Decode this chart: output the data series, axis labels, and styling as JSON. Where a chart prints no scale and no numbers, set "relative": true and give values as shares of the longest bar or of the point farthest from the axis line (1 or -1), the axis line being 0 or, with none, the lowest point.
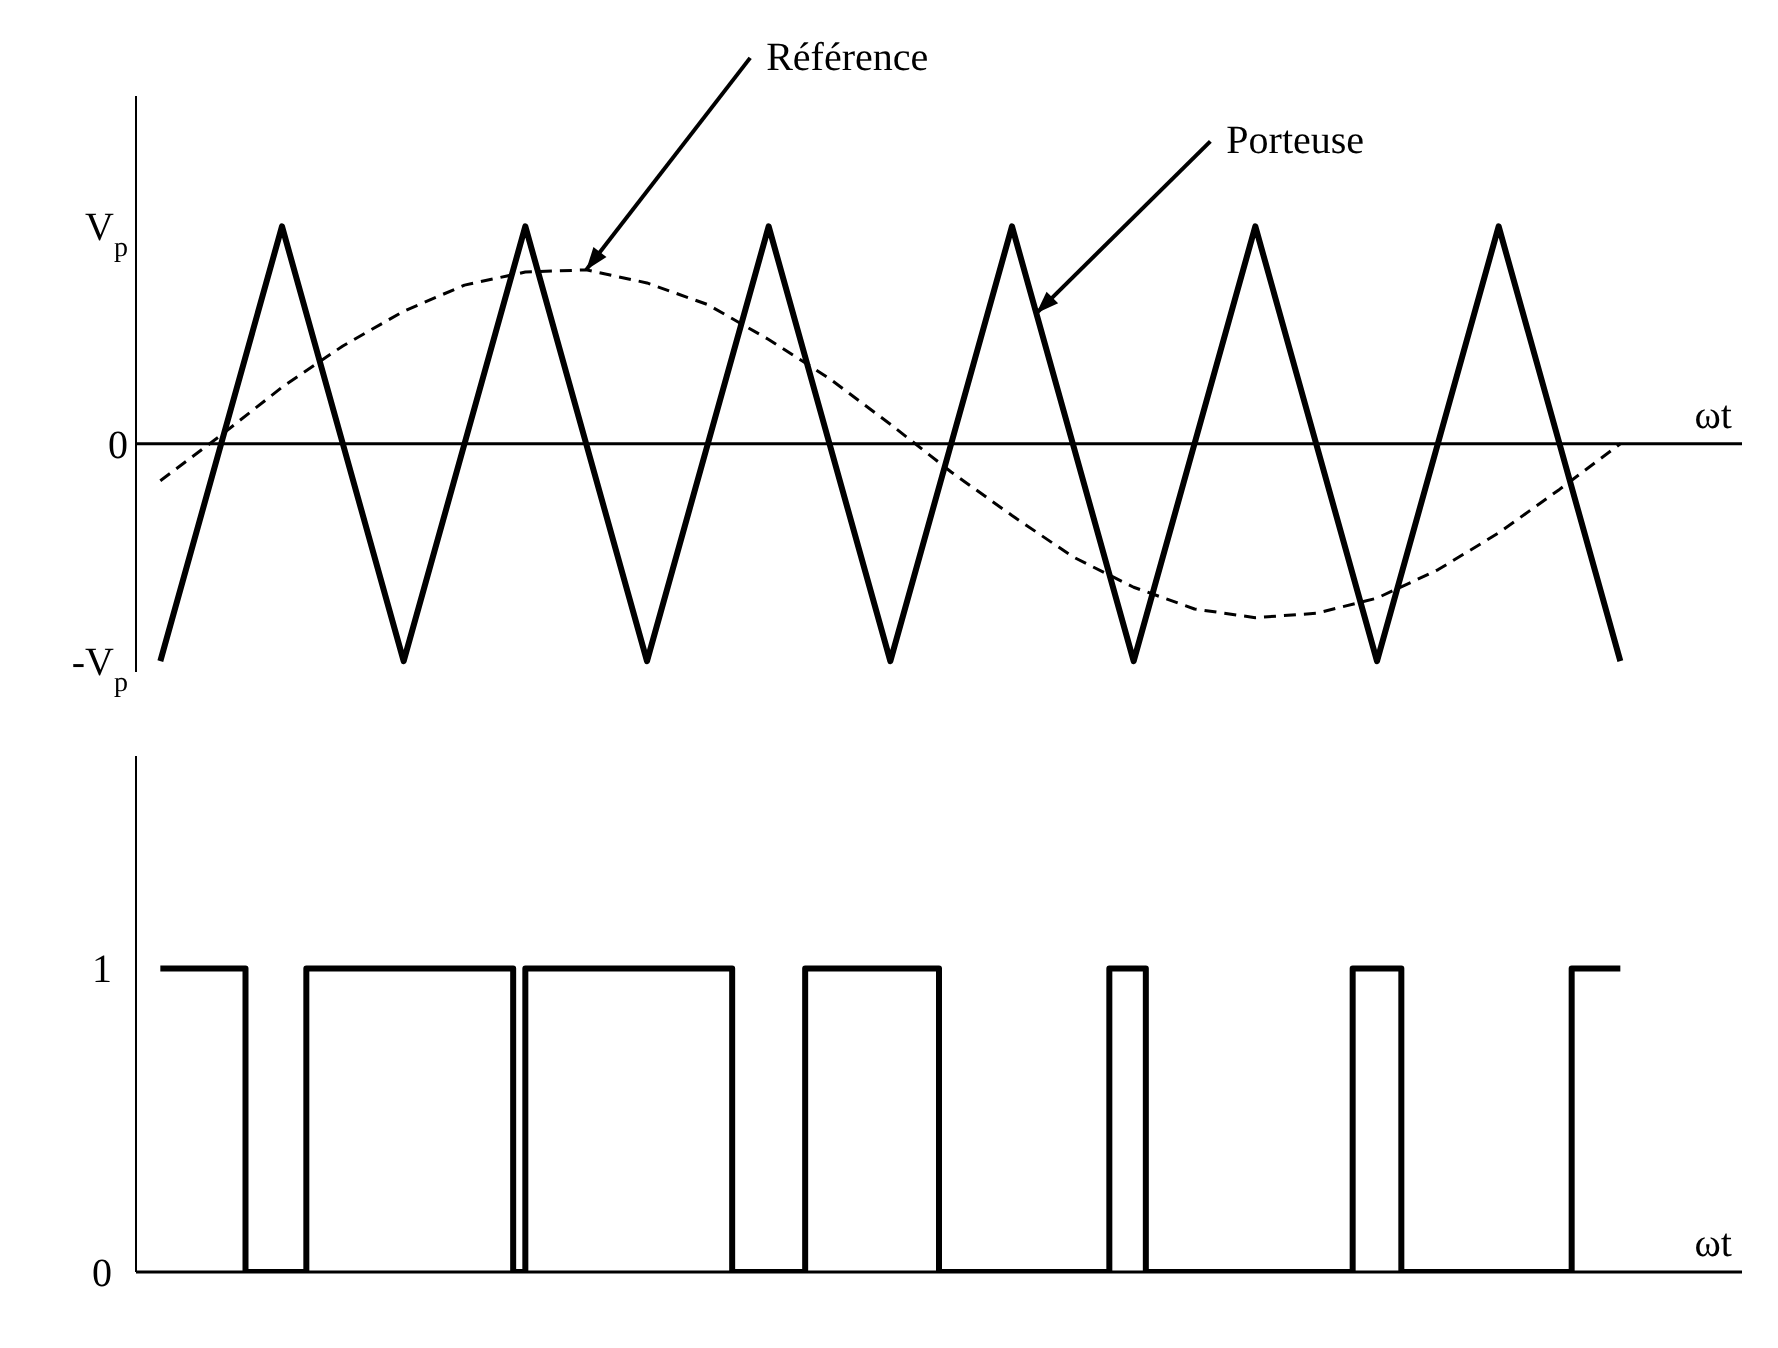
{
  "chart_data": [
    {
      "type": "line",
      "xlabel": "ωt",
      "relative": true,
      "tick_labels": "y",
      "annotations": [
        "V$_{p}$",
        "0",
        "-V$_{p}$"
      ],
      "categories": [
        null,
        null,
        null,
        null,
        null,
        null,
        null,
        null,
        null,
        null,
        null,
        null,
        null,
        null,
        null,
        null,
        null,
        null,
        null,
        null,
        null,
        null,
        null,
        null,
        null
      ],
      "series": [
        {
          "name": "Porteuse",
          "color": "#000000",
          "values": [
            -1,
            0,
            1,
            0,
            -1,
            0,
            1,
            0,
            -1,
            0,
            1,
            0,
            -1,
            0,
            1,
            0,
            -1,
            0,
            1,
            0,
            -1,
            0,
            1,
            0,
            -1
          ]
        },
        {
          "name": "Référence",
          "color": "#000000",
          "line_style": "dashed",
          "values": [
            -0.17,
            0.04,
            0.26,
            0.45,
            0.61,
            0.73,
            0.79,
            0.8,
            0.74,
            0.64,
            0.48,
            0.3,
            0.09,
            -0.13,
            -0.33,
            -0.52,
            -0.66,
            -0.76,
            -0.8,
            -0.78,
            -0.71,
            -0.58,
            -0.41,
            -0.21,
            0
          ]
        }
      ]
    },
    {
      "type": "step",
      "xlabel": "ωt",
      "ylim": [
        0,
        1.7
      ],
      "yticks": [
        0,
        1
      ],
      "tick_labels": "y",
      "categories": [
        null,
        null,
        null,
        null,
        null,
        null,
        null,
        null,
        null,
        null,
        null,
        null,
        null,
        null,
        null,
        null,
        null,
        null,
        null,
        null,
        null,
        null,
        null,
        null,
        null,
        null,
        null,
        null,
        null,
        null,
        null,
        null,
        null,
        null,
        null,
        null,
        null,
        null,
        null,
        null,
        null,
        null,
        null,
        null,
        null,
        null,
        null,
        null,
        null,
        null,
        null,
        null,
        null,
        null,
        null,
        null,
        null,
        null,
        null,
        null,
        null,
        null,
        null,
        null,
        null,
        null,
        null,
        null,
        null,
        null,
        null,
        null,
        null,
        null,
        null,
        null,
        null,
        null,
        null,
        null,
        null,
        null,
        null,
        null,
        null,
        null,
        null,
        null,
        null,
        null,
        null,
        null,
        null,
        null,
        null,
        null,
        null,
        null,
        null,
        null,
        null,
        null,
        null,
        null,
        null,
        null,
        null,
        null,
        null,
        null,
        null,
        null,
        null,
        null,
        null,
        null,
        null,
        null,
        null,
        null,
        null
      ],
      "series": [
        {
          "color": "#000000",
          "values": [
            1,
            1,
            1,
            1,
            1,
            1,
            1,
            0,
            0,
            0,
            0,
            0,
            1,
            1,
            1,
            1,
            1,
            1,
            1,
            1,
            1,
            1,
            1,
            1,
            1,
            1,
            1,
            1,
            1,
            0,
            1,
            1,
            1,
            1,
            1,
            1,
            1,
            1,
            1,
            1,
            1,
            1,
            1,
            1,
            1,
            1,
            1,
            0,
            0,
            0,
            0,
            0,
            0,
            1,
            1,
            1,
            1,
            1,
            1,
            1,
            1,
            1,
            1,
            1,
            0,
            0,
            0,
            0,
            0,
            0,
            0,
            0,
            0,
            0,
            0,
            0,
            0,
            0,
            1,
            1,
            1,
            0,
            0,
            0,
            0,
            0,
            0,
            0,
            0,
            0,
            0,
            0,
            0,
            0,
            0,
            0,
            0,
            0,
            1,
            1,
            1,
            1,
            0,
            0,
            0,
            0,
            0,
            0,
            0,
            0,
            0,
            0,
            0,
            0,
            0,
            0,
            1,
            1,
            1,
            1,
            1
          ]
        }
      ]
    }
  ]
}
